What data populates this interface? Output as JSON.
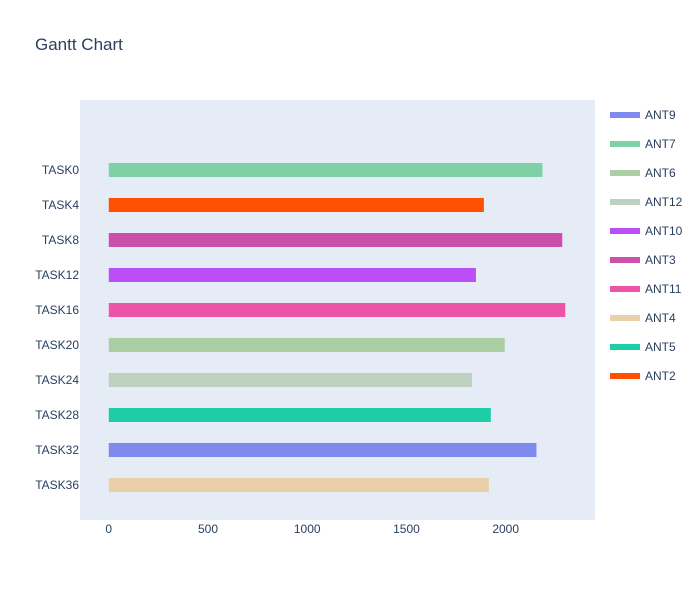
{
  "chart_data": {
    "type": "bar",
    "orientation": "horizontal",
    "title": "Gantt Chart",
    "xlabel": "",
    "ylabel": "",
    "xlim": [
      -145,
      2450
    ],
    "xticks": [
      0,
      500,
      1000,
      1500,
      2000
    ],
    "categories": [
      "TASK0",
      "TASK4",
      "TASK8",
      "TASK12",
      "TASK16",
      "TASK20",
      "TASK24",
      "TASK28",
      "TASK32",
      "TASK36"
    ],
    "tasks": [
      {
        "task": "TASK0",
        "start": 0,
        "end": 2185,
        "resource": "ANT7"
      },
      {
        "task": "TASK4",
        "start": 0,
        "end": 1890,
        "resource": "ANT2"
      },
      {
        "task": "TASK8",
        "start": 0,
        "end": 2285,
        "resource": "ANT3"
      },
      {
        "task": "TASK12",
        "start": 0,
        "end": 1850,
        "resource": "ANT10"
      },
      {
        "task": "TASK16",
        "start": 0,
        "end": 2300,
        "resource": "ANT11"
      },
      {
        "task": "TASK20",
        "start": 0,
        "end": 1995,
        "resource": "ANT6"
      },
      {
        "task": "TASK24",
        "start": 0,
        "end": 1830,
        "resource": "ANT12"
      },
      {
        "task": "TASK28",
        "start": 0,
        "end": 1925,
        "resource": "ANT5"
      },
      {
        "task": "TASK32",
        "start": 0,
        "end": 2155,
        "resource": "ANT9"
      },
      {
        "task": "TASK36",
        "start": 0,
        "end": 1915,
        "resource": "ANT4"
      }
    ],
    "legend": [
      {
        "name": "ANT9",
        "color": "#7f8aef"
      },
      {
        "name": "ANT7",
        "color": "#7ed1a5"
      },
      {
        "name": "ANT6",
        "color": "#abcea5"
      },
      {
        "name": "ANT12",
        "color": "#bdd1c1"
      },
      {
        "name": "ANT10",
        "color": "#bb4ef6"
      },
      {
        "name": "ANT3",
        "color": "#cb50a9"
      },
      {
        "name": "ANT11",
        "color": "#ed53a6"
      },
      {
        "name": "ANT4",
        "color": "#e9d0a8"
      },
      {
        "name": "ANT5",
        "color": "#1ccda5"
      },
      {
        "name": "ANT2",
        "color": "#fe5000"
      }
    ],
    "legend_position": "right",
    "plot_background": "#e5ecf6",
    "grid": false
  }
}
